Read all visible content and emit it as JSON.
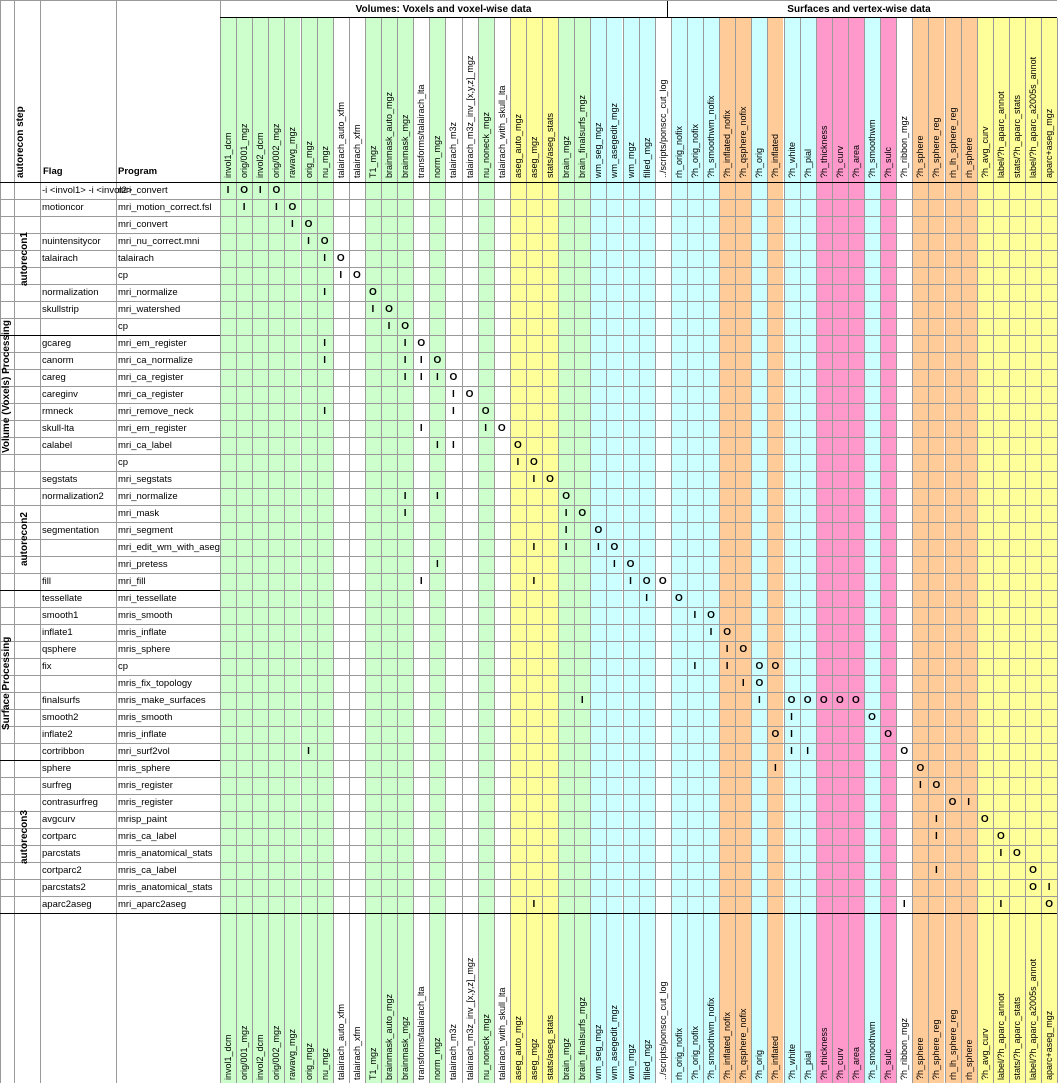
{
  "header": {
    "volumes_title": "Volumes: Voxels and voxel-wise data",
    "surfaces_title": "Surfaces and vertex-wise data",
    "autorecon_step": "autorecon step",
    "flag": "Flag",
    "program": "Program"
  },
  "columns": [
    {
      "label": "invol1_dcm",
      "color": "green"
    },
    {
      "label": "orig/001_mgz",
      "color": "green"
    },
    {
      "label": "invol2_dcm",
      "color": "green"
    },
    {
      "label": "orig/002_mgz",
      "color": "green"
    },
    {
      "label": "rawavg_mgz",
      "color": "green"
    },
    {
      "label": "orig_mgz",
      "color": "green"
    },
    {
      "label": "nu_mgz",
      "color": "green"
    },
    {
      "label": "talairach_auto_xfm",
      "color": "white"
    },
    {
      "label": "talairach_xfm",
      "color": "white"
    },
    {
      "label": "T1_mgz",
      "color": "green"
    },
    {
      "label": "brainmask_auto_mgz",
      "color": "green"
    },
    {
      "label": "brainmask_mgz",
      "color": "green"
    },
    {
      "label": "transforms/talairach_lta",
      "color": "white"
    },
    {
      "label": "norm_mgz",
      "color": "green"
    },
    {
      "label": "talairach_m3z",
      "color": "white"
    },
    {
      "label": "talairach_m3z_inv_[x,y,z]_mgz",
      "color": "white"
    },
    {
      "label": "nu_noneck_mgz",
      "color": "green"
    },
    {
      "label": "talairach_with_skull_lta",
      "color": "white"
    },
    {
      "label": "aseg_auto_mgz",
      "color": "yellow"
    },
    {
      "label": "aseg_mgz",
      "color": "yellow"
    },
    {
      "label": "stats/aseg_stats",
      "color": "yellow"
    },
    {
      "label": "brain_mgz",
      "color": "green"
    },
    {
      "label": "brain_finalsurfs_mgz",
      "color": "green"
    },
    {
      "label": "wm_seg_mgz",
      "color": "cyan"
    },
    {
      "label": "wm_asegedit_mgz",
      "color": "cyan"
    },
    {
      "label": "wm_mgz",
      "color": "cyan"
    },
    {
      "label": "filled_mgz",
      "color": "cyan"
    },
    {
      "label": "../scripts/ponscc_cut_log",
      "color": "white"
    },
    {
      "label": "rh_orig_nofix",
      "color": "cyan"
    },
    {
      "label": "?h_orig_nofix",
      "color": "cyan"
    },
    {
      "label": "?h_smoothwm_nofix",
      "color": "cyan"
    },
    {
      "label": "?h_inflated_nofix",
      "color": "orange"
    },
    {
      "label": "?h_qsphere_nofix",
      "color": "orange"
    },
    {
      "label": "?h_orig",
      "color": "cyan"
    },
    {
      "label": "?h_inflated",
      "color": "orange"
    },
    {
      "label": "?h_white",
      "color": "cyan"
    },
    {
      "label": "?h_pial",
      "color": "cyan"
    },
    {
      "label": "?h_thickness",
      "color": "pink"
    },
    {
      "label": "?h_curv",
      "color": "pink"
    },
    {
      "label": "?h_area",
      "color": "pink"
    },
    {
      "label": "?h_smoothwm",
      "color": "cyan"
    },
    {
      "label": "?h_sulc",
      "color": "pink"
    },
    {
      "label": "?h_ribbon_mgz",
      "color": "white"
    },
    {
      "label": "?h_sphere",
      "color": "orange"
    },
    {
      "label": "?h_sphere_reg",
      "color": "orange"
    },
    {
      "label": "rh_lh_sphere_reg",
      "color": "orange"
    },
    {
      "label": "rh_sphere",
      "color": "orange"
    },
    {
      "label": "?h_avg_curv",
      "color": "yellow"
    },
    {
      "label": "label/?h_aparc_annot",
      "color": "yellow"
    },
    {
      "label": "stats/?h_aparc_stats",
      "color": "yellow"
    },
    {
      "label": "label/?h_aparc_a2005s_annot",
      "color": "yellow"
    },
    {
      "label": "aparc+aseg_mgz",
      "color": "yellow"
    }
  ],
  "colors": {
    "green": "#ccffcc",
    "yellow": "#ffff99",
    "cyan": "#ccffff",
    "orange": "#ffcc99",
    "pink": "#ff99cc",
    "white": "#ffffff",
    "grid": "#9a9a9a"
  },
  "groups": {
    "volume_processing": "Volume (Voxels) Processing",
    "surface_processing": "Surface Processing",
    "autorecon1": "autorecon1",
    "autorecon2": "autorecon2",
    "autorecon3": "autorecon3"
  },
  "rows": [
    {
      "flag": "-i <invol1> -i <invol2>",
      "program": "mri_convert",
      "marks": [
        [
          0,
          "I"
        ],
        [
          1,
          "O"
        ],
        [
          2,
          "I"
        ],
        [
          3,
          "O"
        ]
      ]
    },
    {
      "flag": "motioncor",
      "program": "mri_motion_correct.fsl",
      "marks": [
        [
          1,
          "I"
        ],
        [
          3,
          "I"
        ],
        [
          4,
          "O"
        ]
      ]
    },
    {
      "flag": "",
      "program": "mri_convert",
      "marks": [
        [
          4,
          "I"
        ],
        [
          5,
          "O"
        ]
      ]
    },
    {
      "flag": "nuintensitycor",
      "program": "mri_nu_correct.mni",
      "marks": [
        [
          5,
          "I"
        ],
        [
          6,
          "O"
        ]
      ]
    },
    {
      "flag": "talairach",
      "program": "talairach",
      "marks": [
        [
          6,
          "I"
        ],
        [
          7,
          "O"
        ]
      ]
    },
    {
      "flag": "",
      "program": "cp",
      "marks": [
        [
          7,
          "I"
        ],
        [
          8,
          "O"
        ]
      ]
    },
    {
      "flag": "normalization",
      "program": "mri_normalize",
      "marks": [
        [
          6,
          "I"
        ],
        [
          9,
          "O"
        ]
      ]
    },
    {
      "flag": "skullstrip",
      "program": "mri_watershed",
      "marks": [
        [
          9,
          "I"
        ],
        [
          10,
          "O"
        ]
      ]
    },
    {
      "flag": "",
      "program": "cp",
      "marks": [
        [
          10,
          "I"
        ],
        [
          11,
          "O"
        ]
      ]
    },
    {
      "flag": "gcareg",
      "program": "mri_em_register",
      "marks": [
        [
          6,
          "I"
        ],
        [
          11,
          "I"
        ],
        [
          12,
          "O"
        ]
      ]
    },
    {
      "flag": "canorm",
      "program": "mri_ca_normalize",
      "marks": [
        [
          6,
          "I"
        ],
        [
          11,
          "I"
        ],
        [
          12,
          "I"
        ],
        [
          13,
          "O"
        ]
      ]
    },
    {
      "flag": "careg",
      "program": "mri_ca_register",
      "marks": [
        [
          11,
          "I"
        ],
        [
          12,
          "I"
        ],
        [
          13,
          "I"
        ],
        [
          14,
          "O"
        ]
      ]
    },
    {
      "flag": "careginv",
      "program": "mri_ca_register",
      "marks": [
        [
          14,
          "I"
        ],
        [
          15,
          "O"
        ]
      ]
    },
    {
      "flag": "rmneck",
      "program": "mri_remove_neck",
      "marks": [
        [
          6,
          "I"
        ],
        [
          14,
          "I"
        ],
        [
          16,
          "O"
        ]
      ]
    },
    {
      "flag": "skull-lta",
      "program": "mri_em_register",
      "marks": [
        [
          12,
          "I"
        ],
        [
          16,
          "I"
        ],
        [
          17,
          "O"
        ]
      ]
    },
    {
      "flag": "calabel",
      "program": "mri_ca_label",
      "marks": [
        [
          13,
          "I"
        ],
        [
          14,
          "I"
        ],
        [
          18,
          "O"
        ]
      ]
    },
    {
      "flag": "",
      "program": "cp",
      "marks": [
        [
          18,
          "I"
        ],
        [
          19,
          "O"
        ]
      ]
    },
    {
      "flag": "segstats",
      "program": "mri_segstats",
      "marks": [
        [
          19,
          "I"
        ],
        [
          20,
          "O"
        ]
      ]
    },
    {
      "flag": "normalization2",
      "program": "mri_normalize",
      "marks": [
        [
          11,
          "I"
        ],
        [
          13,
          "I"
        ],
        [
          21,
          "O"
        ]
      ]
    },
    {
      "flag": "",
      "program": "mri_mask",
      "marks": [
        [
          11,
          "I"
        ],
        [
          21,
          "I"
        ],
        [
          22,
          "O"
        ]
      ]
    },
    {
      "flag": "segmentation",
      "program": "mri_segment",
      "marks": [
        [
          21,
          "I"
        ],
        [
          23,
          "O"
        ]
      ]
    },
    {
      "flag": "",
      "program": "mri_edit_wm_with_aseg",
      "marks": [
        [
          19,
          "I"
        ],
        [
          21,
          "I"
        ],
        [
          23,
          "I"
        ],
        [
          24,
          "O"
        ]
      ]
    },
    {
      "flag": "",
      "program": "mri_pretess",
      "marks": [
        [
          13,
          "I"
        ],
        [
          24,
          "I"
        ],
        [
          25,
          "O"
        ]
      ]
    },
    {
      "flag": "fill",
      "program": "mri_fill",
      "marks": [
        [
          12,
          "I"
        ],
        [
          19,
          "I"
        ],
        [
          25,
          "I"
        ],
        [
          26,
          "O"
        ],
        [
          27,
          "O"
        ]
      ]
    },
    {
      "flag": "tessellate",
      "program": "mri_tessellate",
      "marks": [
        [
          26,
          "I"
        ],
        [
          28,
          "O"
        ]
      ]
    },
    {
      "flag": "smooth1",
      "program": "mris_smooth",
      "marks": [
        [
          29,
          "I"
        ],
        [
          30,
          "O"
        ]
      ]
    },
    {
      "flag": "inflate1",
      "program": "mris_inflate",
      "marks": [
        [
          30,
          "I"
        ],
        [
          31,
          "O"
        ]
      ]
    },
    {
      "flag": "qsphere",
      "program": "mris_sphere",
      "marks": [
        [
          31,
          "I"
        ],
        [
          32,
          "O"
        ]
      ]
    },
    {
      "flag": "fix",
      "program": "cp",
      "marks": [
        [
          29,
          "I"
        ],
        [
          31,
          "I"
        ],
        [
          33,
          "O"
        ],
        [
          34,
          "O"
        ]
      ]
    },
    {
      "flag": "",
      "program": "mris_fix_topology",
      "marks": [
        [
          32,
          "I"
        ],
        [
          33,
          "O"
        ]
      ]
    },
    {
      "flag": "finalsurfs",
      "program": "mris_make_surfaces",
      "marks": [
        [
          22,
          "I"
        ],
        [
          33,
          "I"
        ],
        [
          35,
          "O"
        ],
        [
          36,
          "O"
        ],
        [
          37,
          "O"
        ],
        [
          38,
          "O"
        ],
        [
          39,
          "O"
        ]
      ]
    },
    {
      "flag": "smooth2",
      "program": "mris_smooth",
      "marks": [
        [
          35,
          "I"
        ],
        [
          40,
          "O"
        ]
      ]
    },
    {
      "flag": "inflate2",
      "program": "mris_inflate",
      "marks": [
        [
          34,
          "O"
        ],
        [
          35,
          "I"
        ],
        [
          41,
          "O"
        ]
      ]
    },
    {
      "flag": "cortribbon",
      "program": "mri_surf2vol",
      "marks": [
        [
          5,
          "I"
        ],
        [
          35,
          "I"
        ],
        [
          36,
          "I"
        ],
        [
          42,
          "O"
        ]
      ]
    },
    {
      "flag": "sphere",
      "program": "mris_sphere",
      "marks": [
        [
          34,
          "I"
        ],
        [
          43,
          "O"
        ]
      ]
    },
    {
      "flag": "surfreg",
      "program": "mris_register",
      "marks": [
        [
          43,
          "I"
        ],
        [
          44,
          "O"
        ]
      ]
    },
    {
      "flag": "contrasurfreg",
      "program": "mris_register",
      "marks": [
        [
          45,
          "O"
        ],
        [
          46,
          "I"
        ]
      ]
    },
    {
      "flag": "avgcurv",
      "program": "mrisp_paint",
      "marks": [
        [
          44,
          "I"
        ],
        [
          47,
          "O"
        ]
      ]
    },
    {
      "flag": "cortparc",
      "program": "mris_ca_label",
      "marks": [
        [
          44,
          "I"
        ],
        [
          48,
          "O"
        ]
      ]
    },
    {
      "flag": "parcstats",
      "program": "mris_anatomical_stats",
      "marks": [
        [
          48,
          "I"
        ],
        [
          49,
          "O"
        ]
      ]
    },
    {
      "flag": "cortparc2",
      "program": "mris_ca_label",
      "marks": [
        [
          44,
          "I"
        ],
        [
          50,
          "O"
        ]
      ]
    },
    {
      "flag": "parcstats2",
      "program": "mris_anatomical_stats",
      "marks": [
        [
          50,
          "O"
        ],
        [
          51,
          "I"
        ]
      ]
    },
    {
      "flag": "aparc2aseg",
      "program": "mri_aparc2aseg",
      "marks": [
        [
          19,
          "I"
        ],
        [
          42,
          "I"
        ],
        [
          48,
          "I"
        ],
        [
          51,
          "O"
        ]
      ]
    }
  ]
}
